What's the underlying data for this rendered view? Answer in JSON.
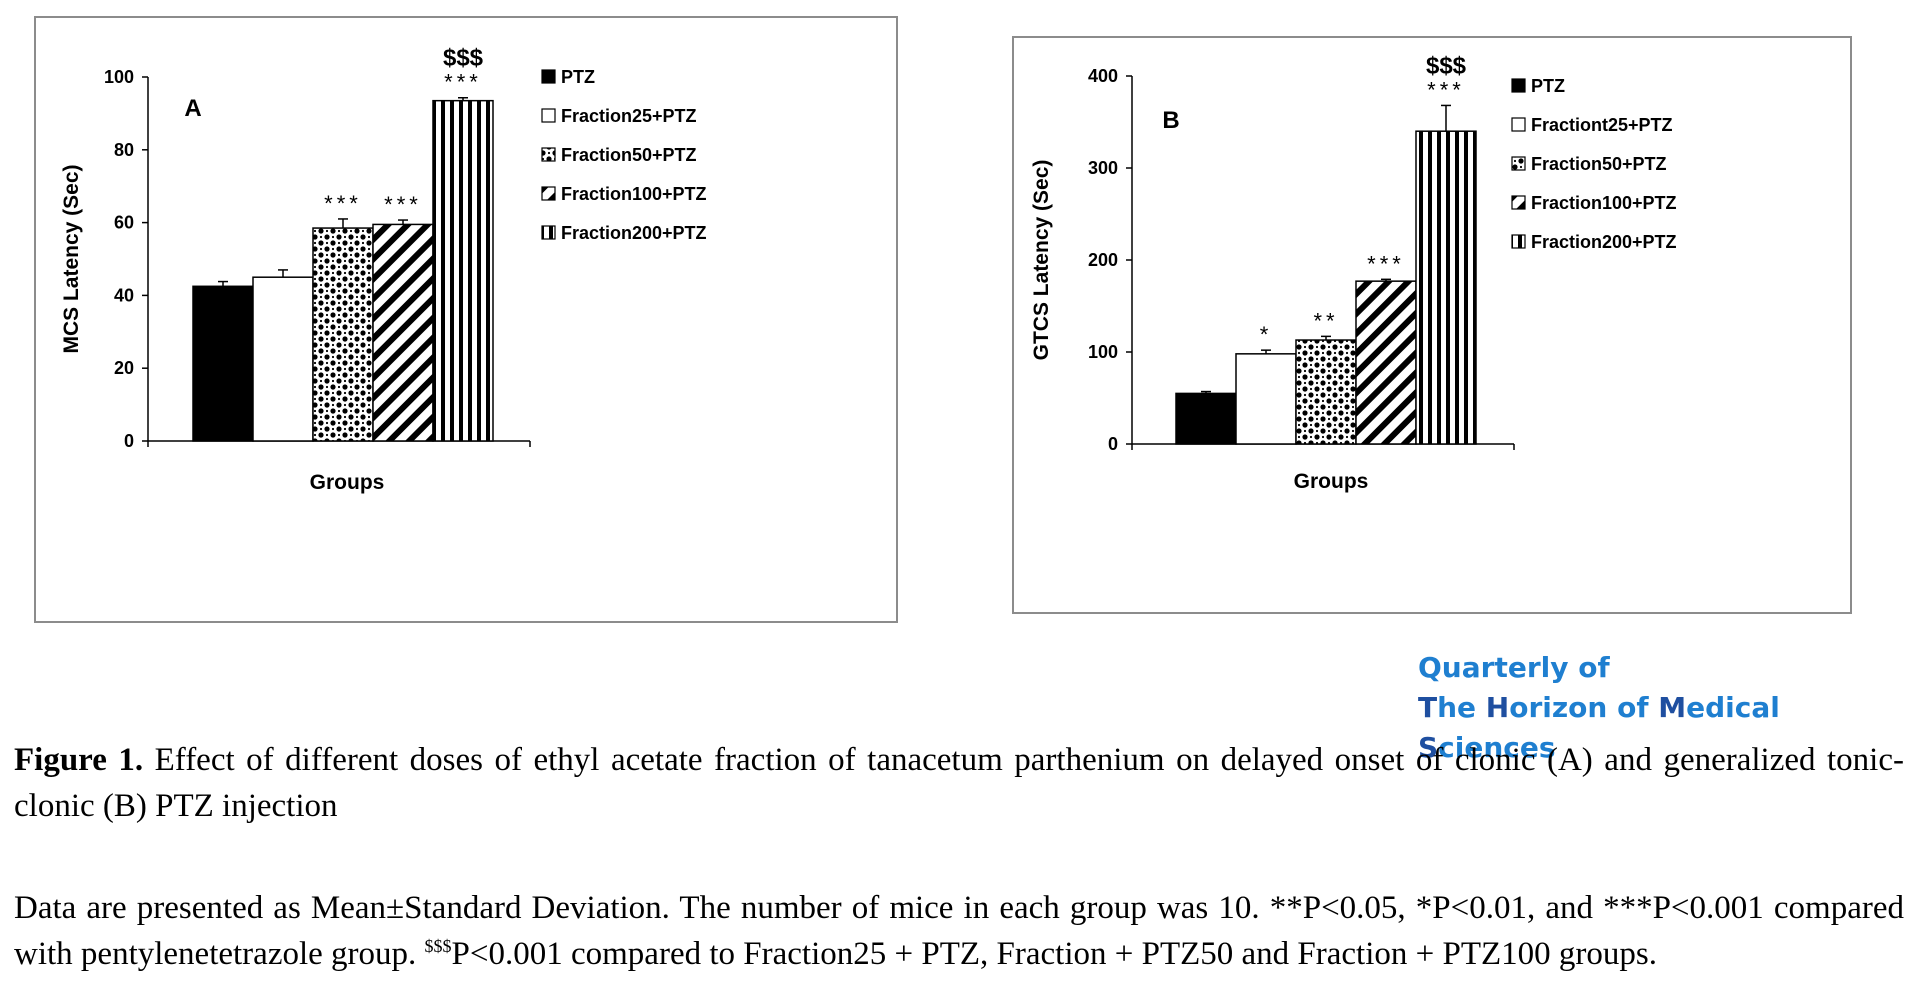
{
  "chart_data": [
    {
      "type": "bar",
      "panel_label": "A",
      "xlabel": "Groups",
      "ylabel": "MCS Latency (Sec)",
      "ylim": [
        0,
        100
      ],
      "yticks": [
        "0",
        "20",
        "40",
        "60",
        "80",
        "100"
      ],
      "categories": [
        "PTZ",
        "Fraction25+PTZ",
        "Fraction50+PTZ",
        "Fraction100+PTZ",
        "Fraction200+PTZ"
      ],
      "patterns": [
        "solid",
        "white",
        "checker",
        "diagonal",
        "vertical"
      ],
      "values": [
        42.5,
        45,
        58.5,
        59.5,
        93.5
      ],
      "errors": [
        1.3,
        2,
        2.5,
        1.2,
        0.8
      ],
      "annotations": [
        "",
        "",
        "***",
        "***",
        "***"
      ],
      "annotations_top": [
        "",
        "",
        "",
        "",
        "$$$"
      ],
      "legend": [
        "PTZ",
        "Fraction25+PTZ",
        "Fraction50+PTZ",
        "Fraction100+PTZ",
        "Fraction200+PTZ"
      ],
      "legend_position": "right",
      "grid": false
    },
    {
      "type": "bar",
      "panel_label": "B",
      "xlabel": "Groups",
      "ylabel": "GTCS Latency (Sec)",
      "ylim": [
        0,
        400
      ],
      "yticks": [
        "0",
        "100",
        "200",
        "300",
        "400"
      ],
      "categories": [
        "PTZ",
        "Fractiont25+PTZ",
        "Fraction50+PTZ",
        "Fraction100+PTZ",
        "Fraction200+PTZ"
      ],
      "patterns": [
        "solid",
        "white",
        "checker",
        "diagonal",
        "vertical"
      ],
      "values": [
        55,
        98,
        113,
        177,
        340
      ],
      "errors": [
        2,
        4,
        4,
        2,
        28
      ],
      "annotations": [
        "",
        "*",
        "**",
        "***",
        "***"
      ],
      "annotations_top": [
        "",
        "",
        "",
        "",
        "$$$"
      ],
      "legend": [
        "PTZ",
        "Fractiont25+PTZ",
        "Fraction50+PTZ",
        "Fraction100+PTZ",
        "Fraction200+PTZ"
      ],
      "legend_position": "right",
      "grid": false
    }
  ],
  "brand": {
    "line1": "Quarterly of",
    "line2_parts": [
      {
        "t": "T",
        "cap": true
      },
      {
        "t": "he ",
        "cap": false
      },
      {
        "t": "H",
        "cap": true
      },
      {
        "t": "orizon of ",
        "cap": false
      },
      {
        "t": "M",
        "cap": true
      },
      {
        "t": "edical ",
        "cap": false
      },
      {
        "t": "S",
        "cap": true
      },
      {
        "t": "ciences",
        "cap": false
      }
    ]
  },
  "caption": {
    "label": "Figure 1.",
    "text": " Effect of different doses of ethyl acetate fraction of tanacetum parthenium on delayed onset of clonic (A) and generalized tonic-clonic (B) PTZ injection",
    "note_part1": "Data are presented as Mean±Standard Deviation. The number of mice in each group was 10. **P<0.05, *P<0.01, and ***P<0.001 compared with pentylenetetrazole group. ",
    "note_sup": "$$$",
    "note_part2": "P<0.001 compared to Fraction25 + PTZ, Fraction + PTZ50 and Fraction + PTZ100 groups."
  },
  "colors": {
    "border": "#8c8c8c",
    "brand": "#1f7fd0",
    "brand_cap": "#1f4fa0"
  }
}
